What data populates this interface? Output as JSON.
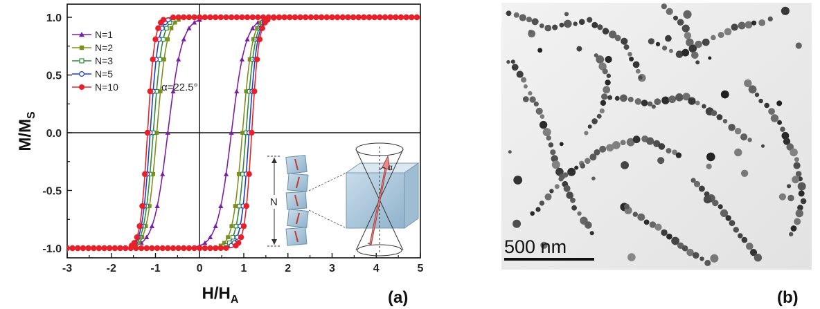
{
  "panels": {
    "a_label": "(a)",
    "b_label": "(b)"
  },
  "chart_data": {
    "type": "line",
    "title": "",
    "xlabel_main": "H/H",
    "xlabel_sub": "A",
    "ylabel_main": "M/M",
    "ylabel_sub": "S",
    "xlim": [
      -3,
      5
    ],
    "ylim": [
      -1.1,
      1.1
    ],
    "xticks": [
      "-3",
      "-2",
      "-1",
      "0",
      "1",
      "2",
      "3",
      "4",
      "5"
    ],
    "yticks": [
      "1.0",
      "0.5",
      "0.0",
      "-0.5",
      "-1.0"
    ],
    "grid": false,
    "legend_position": "top-left",
    "annotations": {
      "alpha_label": "α=22.5°",
      "n_label": "N",
      "alpha_symbol": "α"
    },
    "series": [
      {
        "name": "N=1",
        "color": "#7b1fa2",
        "marker": "triangle",
        "coercive_field": 0.72,
        "width": 0.16
      },
      {
        "name": "N=2",
        "color": "#7f8f1e",
        "marker": "square",
        "coercive_field": 0.97,
        "width": 0.11
      },
      {
        "name": "N=3",
        "color": "#2e8b3a",
        "marker": "square-open",
        "coercive_field": 1.05,
        "width": 0.1
      },
      {
        "name": "N=5",
        "color": "#1f3fbf",
        "marker": "circle-open",
        "coercive_field": 1.12,
        "width": 0.09
      },
      {
        "name": "N=10",
        "color": "#e8202a",
        "marker": "circle",
        "coercive_field": 1.18,
        "width": 0.08
      }
    ]
  },
  "micrograph": {
    "scale_label": "500 nm"
  }
}
